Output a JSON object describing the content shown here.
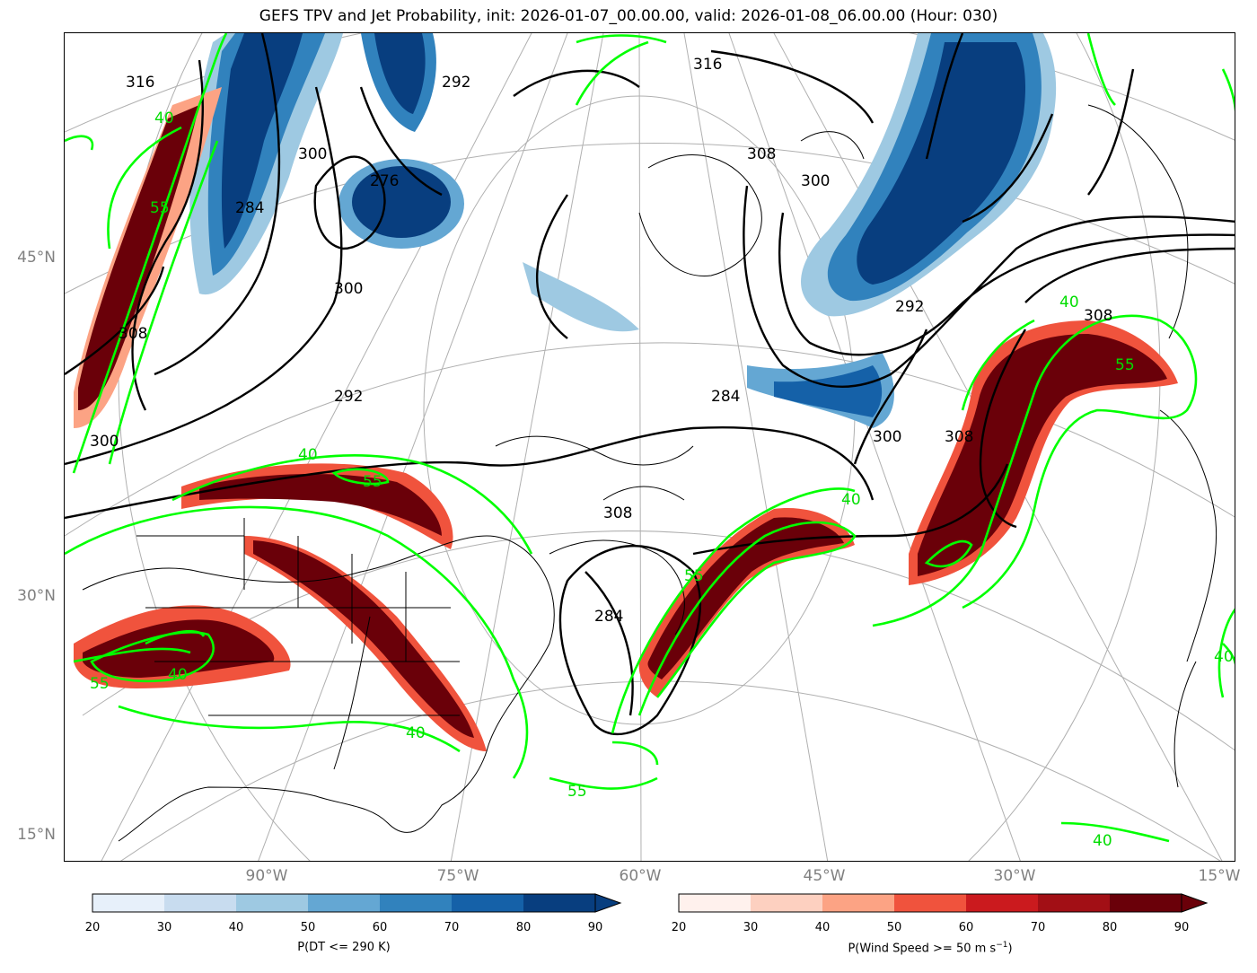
{
  "title": "GEFS TPV and Jet Probability, init: 2026-01-07_00.00.00, valid: 2026-01-08_06.00.00 (Hour: 030)",
  "lat_labels": [
    "45°N",
    "30°N",
    "15°N"
  ],
  "lon_labels": [
    "90°W",
    "75°W",
    "60°W",
    "45°W",
    "30°W",
    "15°W"
  ],
  "contour_labels": {
    "theta": [
      "316",
      "292",
      "300",
      "276",
      "308",
      "284",
      "316",
      "300",
      "292",
      "308",
      "300",
      "284",
      "292",
      "308",
      "308",
      "300",
      "284",
      "308",
      "300"
    ],
    "jet": [
      "40",
      "55",
      "40",
      "55",
      "55",
      "40",
      "40",
      "55",
      "55",
      "40",
      "40",
      "55",
      "40",
      "40"
    ]
  },
  "colorbars": [
    {
      "name": "tpv",
      "label": "P(DT <= 290 K)",
      "ticks": [
        "20",
        "30",
        "40",
        "50",
        "60",
        "70",
        "80",
        "90"
      ],
      "colors": [
        "#e7f0fa",
        "#c8dcef",
        "#9ec9e2",
        "#64a7d3",
        "#3182bd",
        "#1561a8",
        "#083e7f"
      ]
    },
    {
      "name": "jet",
      "label_prefix": "P(Wind Speed >= 50 m s",
      "label_sup": "−1",
      "label_suffix": ")",
      "ticks": [
        "20",
        "30",
        "40",
        "50",
        "60",
        "70",
        "80",
        "90"
      ],
      "colors": [
        "#fff1ed",
        "#fdd0c0",
        "#fca384",
        "#f0533d",
        "#cb1a1e",
        "#a20f15",
        "#6a0009"
      ]
    }
  ]
}
